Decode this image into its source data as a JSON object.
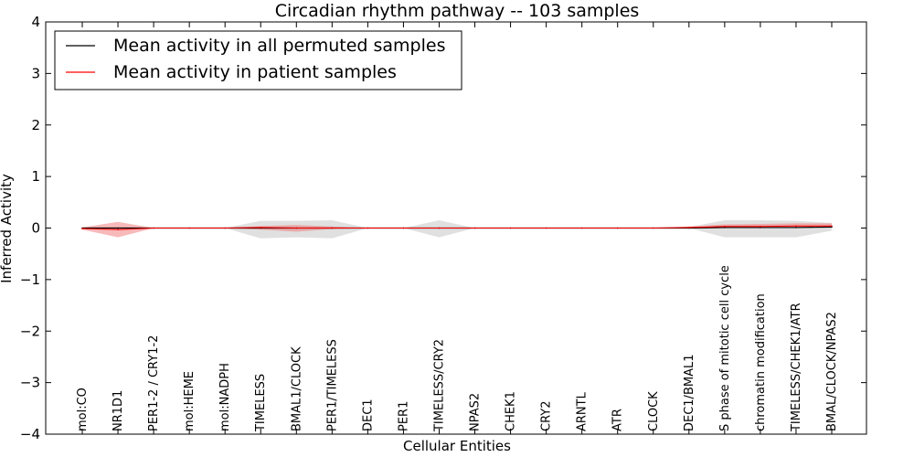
{
  "chart_data": {
    "type": "line",
    "title": "Circadian rhythm pathway -- 103 samples",
    "xlabel": "Cellular Entities",
    "ylabel": "Inferred Activity",
    "ylim": [
      -4,
      4
    ],
    "yticks": [
      4,
      3,
      2,
      1,
      0,
      -1,
      -2,
      -3,
      -4
    ],
    "yticklabels": [
      "4",
      "3",
      "2",
      "1",
      "0",
      "−1",
      "−2",
      "−3",
      "−4"
    ],
    "grid": false,
    "legend_position": "top-left",
    "categories": [
      "mol:CO",
      "NR1D1",
      "PER1-2 / CRY1-2",
      "mol:HEME",
      "mol:NADPH",
      "TIMELESS",
      "BMAL1/CLOCK",
      "PER1/TIMELESS",
      "DEC1",
      "PER1",
      "TIMELESS/CRY2",
      "NPAS2",
      "CHEK1",
      "CRY2",
      "ARNTL",
      "ATR",
      "CLOCK",
      "DEC1/BMAL1",
      "S phase of mitotic cell cycle",
      "chromatin modification",
      "TIMELESS/CHEK1/ATR",
      "BMAL/CLOCK/NPAS2"
    ],
    "series": [
      {
        "name": "Mean activity in all permuted samples",
        "color": "#000000",
        "values": [
          0,
          0,
          0,
          0,
          0,
          0,
          0,
          0,
          0,
          0,
          0,
          0,
          0,
          0,
          0,
          0,
          0,
          0,
          0.01,
          0.01,
          0.01,
          0.02
        ],
        "band_low": [
          0,
          0,
          0,
          0,
          0,
          -0.2,
          -0.18,
          -0.2,
          0,
          0,
          -0.18,
          0,
          0,
          0,
          0,
          0,
          0,
          0,
          -0.18,
          -0.18,
          -0.18,
          -0.05
        ],
        "band_high": [
          0,
          0,
          0,
          0,
          0,
          0.14,
          0.14,
          0.15,
          0,
          0,
          0.15,
          0,
          0,
          0,
          0,
          0,
          0,
          0.02,
          0.15,
          0.15,
          0.14,
          0.1
        ],
        "band_color": "#cccccc"
      },
      {
        "name": "Mean activity in patient samples",
        "color": "#ff0000",
        "values": [
          -0.01,
          -0.03,
          0,
          0,
          0,
          0.01,
          0,
          0,
          0,
          0,
          0,
          0,
          0,
          0,
          0,
          0,
          0,
          0.01,
          0.03,
          0.03,
          0.04,
          0.04
        ],
        "band_low": [
          -0.03,
          -0.18,
          0,
          0,
          0,
          -0.03,
          -0.07,
          -0.02,
          0,
          0,
          0,
          0,
          0,
          0,
          0,
          0,
          0,
          0,
          0.01,
          0.01,
          0.01,
          0.01
        ],
        "band_high": [
          0.01,
          0.12,
          0,
          0,
          0,
          0.04,
          0.06,
          0.03,
          0,
          0,
          0,
          0,
          0,
          0,
          0,
          0,
          0,
          0.03,
          0.07,
          0.08,
          0.09,
          0.09
        ],
        "band_color": "#f08080"
      }
    ]
  }
}
